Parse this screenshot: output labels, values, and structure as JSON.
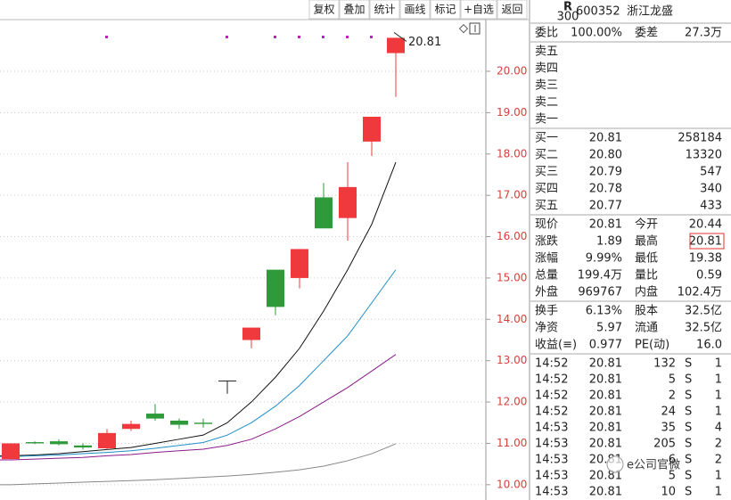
{
  "toolbar": [
    "复权",
    "叠加",
    "统计",
    "画线",
    "标记",
    "+自选",
    "返回"
  ],
  "chart_data": {
    "type": "candlestick",
    "ylim": [
      9.63,
      21.25
    ],
    "yticks": [
      {
        "value": 10,
        "label": "10.00"
      },
      {
        "value": 11,
        "label": "11.00"
      },
      {
        "value": 12,
        "label": "12.00"
      },
      {
        "value": 13,
        "label": "13.00"
      },
      {
        "value": 14,
        "label": "14.00"
      },
      {
        "value": 15,
        "label": "15.00"
      },
      {
        "value": 16,
        "label": "16.00"
      },
      {
        "value": 17,
        "label": "17.00"
      },
      {
        "value": 18,
        "label": "18.00"
      },
      {
        "value": 19,
        "label": "19.00"
      },
      {
        "value": 20,
        "label": "20.00"
      }
    ],
    "open": [
      10.62,
      11.03,
      11.05,
      10.95,
      10.88,
      11.35,
      11.72,
      11.55,
      11.5,
      12.52,
      13.5,
      15.2,
      15.0,
      16.95,
      16.45,
      18.3,
      20.44
    ],
    "close": [
      11.0,
      11.0,
      10.98,
      10.9,
      11.25,
      11.47,
      11.6,
      11.45,
      11.47,
      12.52,
      13.8,
      14.3,
      15.7,
      16.2,
      17.2,
      18.9,
      20.81
    ],
    "high": [
      11.0,
      11.05,
      11.1,
      11.0,
      11.35,
      11.55,
      11.95,
      11.6,
      11.6,
      12.52,
      13.8,
      15.2,
      15.7,
      17.3,
      17.8,
      18.9,
      20.81
    ],
    "low": [
      10.62,
      10.98,
      10.95,
      10.85,
      10.85,
      11.3,
      11.55,
      11.35,
      11.38,
      12.2,
      13.3,
      14.1,
      14.75,
      16.2,
      15.9,
      17.95,
      19.38
    ],
    "up_color": "#f0393c",
    "down_color": "#2e9a3a",
    "series": [
      {
        "color": "#111111",
        "values": [
          10.7,
          10.72,
          10.75,
          10.8,
          10.85,
          10.9,
          11.0,
          11.1,
          11.2,
          11.5,
          12.0,
          12.6,
          13.3,
          14.2,
          15.2,
          16.3,
          17.8
        ]
      },
      {
        "color": "#1f8fc8",
        "values": [
          10.68,
          10.7,
          10.72,
          10.75,
          10.78,
          10.82,
          10.88,
          10.95,
          11.02,
          11.2,
          11.5,
          11.9,
          12.4,
          13.0,
          13.6,
          14.4,
          15.2
        ]
      },
      {
        "color": "#8a1a8a",
        "values": [
          10.6,
          10.62,
          10.64,
          10.66,
          10.7,
          10.73,
          10.78,
          10.82,
          10.86,
          10.95,
          11.1,
          11.35,
          11.65,
          12.0,
          12.35,
          12.75,
          13.15
        ]
      },
      {
        "color": "#888888",
        "values": [
          10.0,
          10.02,
          10.04,
          10.06,
          10.08,
          10.1,
          10.12,
          10.15,
          10.18,
          10.21,
          10.25,
          10.3,
          10.36,
          10.45,
          10.58,
          10.75,
          10.99
        ]
      }
    ],
    "annotation": "20.81"
  },
  "quote": {
    "badge": [
      "R",
      "300"
    ],
    "code": "600352",
    "name": "浙江龙盛",
    "ratio": [
      "委比",
      "100.00%",
      "委差",
      "27.3万"
    ],
    "sell": [
      "卖五",
      "卖四",
      "卖三",
      "卖二",
      "卖一"
    ],
    "buy": [
      [
        "买一",
        "20.81",
        "258184"
      ],
      [
        "买二",
        "20.80",
        "13320"
      ],
      [
        "买三",
        "20.79",
        "547"
      ],
      [
        "买四",
        "20.78",
        "340"
      ],
      [
        "买五",
        "20.77",
        "433"
      ]
    ],
    "stats": [
      [
        "现价",
        "20.81",
        "今开",
        "20.44"
      ],
      [
        "涨跌",
        "1.89",
        "最高",
        "20.81"
      ],
      [
        "涨幅",
        "9.99%",
        "最低",
        "19.38"
      ],
      [
        "总量",
        "199.4万",
        "量比",
        "0.59"
      ],
      [
        "外盘",
        "969767",
        "内盘",
        "102.4万"
      ]
    ],
    "fundamentals": [
      [
        "换手",
        "6.13%",
        "股本",
        "32.5亿"
      ],
      [
        "净资",
        "5.97",
        "流通",
        "32.5亿"
      ],
      [
        "收益(≡)",
        "0.977",
        "PE(动)",
        "16.0"
      ]
    ],
    "trades": [
      [
        "14:52",
        "20.81",
        "132",
        "S",
        "1"
      ],
      [
        "14:52",
        "20.81",
        "5",
        "S",
        "1"
      ],
      [
        "14:52",
        "20.81",
        "2",
        "S",
        "1"
      ],
      [
        "14:52",
        "20.81",
        "24",
        "S",
        "1"
      ],
      [
        "14:53",
        "20.81",
        "35",
        "S",
        "4"
      ],
      [
        "14:53",
        "20.81",
        "205",
        "S",
        "2"
      ],
      [
        "14:53",
        "20.81",
        "6",
        "S",
        "2"
      ],
      [
        "14:53",
        "20.81",
        "5",
        "S",
        "1"
      ],
      [
        "14:53",
        "20.81",
        "10",
        "S",
        "1"
      ]
    ]
  },
  "watermark": "e公司官微"
}
